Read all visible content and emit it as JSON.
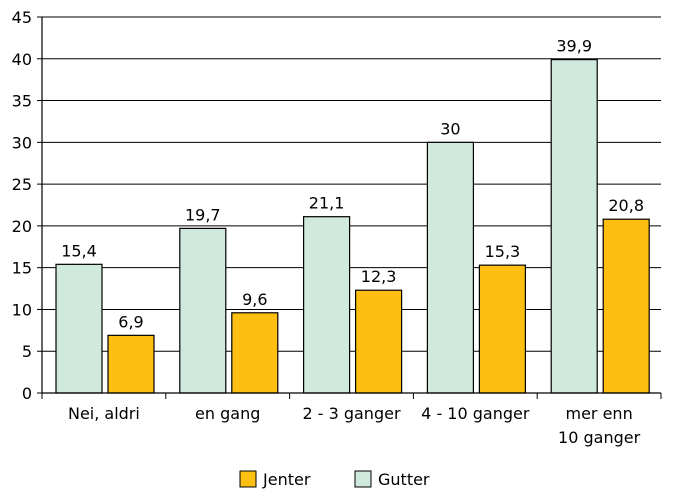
{
  "chart_data": {
    "type": "bar",
    "categories": [
      [
        "Nei, aldri"
      ],
      [
        "en gang"
      ],
      [
        "2 - 3 ganger"
      ],
      [
        "4 - 10 ganger"
      ],
      [
        "mer enn",
        "10 ganger"
      ]
    ],
    "series": [
      {
        "name": "Gutter",
        "values": [
          15.4,
          19.7,
          21.1,
          30,
          39.9
        ],
        "labels": [
          "15,4",
          "19,7",
          "21,1",
          "30",
          "39,9"
        ],
        "color": "#cfe9dc"
      },
      {
        "name": "Jenter",
        "values": [
          6.9,
          9.6,
          12.3,
          15.3,
          20.8
        ],
        "labels": [
          "6,9",
          "9,6",
          "12,3",
          "15,3",
          "20,8"
        ],
        "color": "#fdbf12"
      }
    ],
    "ylim": [
      0,
      45
    ],
    "yticks": [
      0,
      5,
      10,
      15,
      20,
      25,
      30,
      35,
      40,
      45
    ],
    "grid": true,
    "legend_order": [
      "Jenter",
      "Gutter"
    ],
    "legend_position": "bottom-center",
    "title": "",
    "xlabel": "",
    "ylabel": ""
  }
}
